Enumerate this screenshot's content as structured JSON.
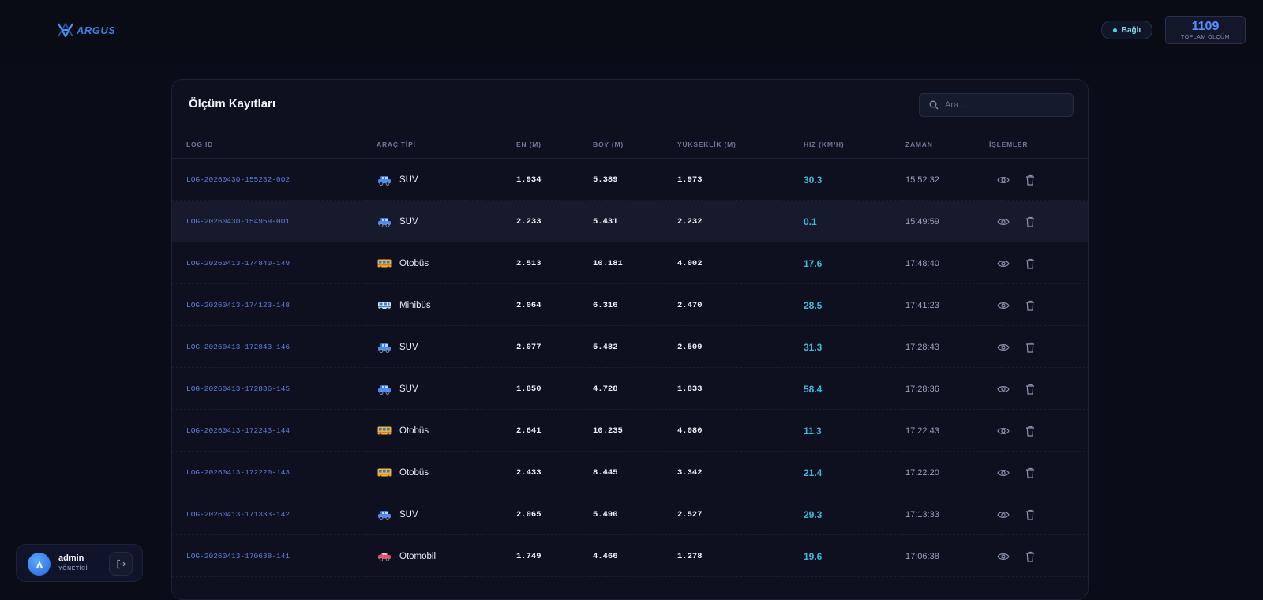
{
  "brand": {
    "name": "ARGUS",
    "accent": "#3f7fe0"
  },
  "header": {
    "status_label": "Bağlı",
    "status_color": "#4fd1e8",
    "total_count": "1109",
    "total_label": "TOPLAM ÖLÇÜM"
  },
  "panel": {
    "title": "Ölçüm Kayıtları",
    "search_placeholder": "Ara..."
  },
  "table": {
    "columns": [
      "LOG ID",
      "ARAÇ TİPİ",
      "EN (M)",
      "BOY (M)",
      "YÜKSEKLİK (M)",
      "HIZ (KM/H)",
      "ZAMAN",
      "İŞLEMLER"
    ],
    "rows": [
      {
        "id": "LOG-20260430-155232-002",
        "type": "SUV",
        "icon": "suv-icon",
        "en": "1.934",
        "boy": "5.389",
        "yukseklik": "1.973",
        "hiz": "30.3",
        "zaman": "15:52:32"
      },
      {
        "id": "LOG-20260430-154959-001",
        "type": "SUV",
        "icon": "suv-icon",
        "en": "2.233",
        "boy": "5.431",
        "yukseklik": "2.232",
        "hiz": "0.1",
        "zaman": "15:49:59"
      },
      {
        "id": "LOG-20260413-174840-149",
        "type": "Otobüs",
        "icon": "bus-icon",
        "en": "2.513",
        "boy": "10.181",
        "yukseklik": "4.002",
        "hiz": "17.6",
        "zaman": "17:48:40"
      },
      {
        "id": "LOG-20260413-174123-148",
        "type": "Minibüs",
        "icon": "minibus-icon",
        "en": "2.064",
        "boy": "6.316",
        "yukseklik": "2.470",
        "hiz": "28.5",
        "zaman": "17:41:23"
      },
      {
        "id": "LOG-20260413-172843-146",
        "type": "SUV",
        "icon": "suv-icon",
        "en": "2.077",
        "boy": "5.482",
        "yukseklik": "2.509",
        "hiz": "31.3",
        "zaman": "17:28:43"
      },
      {
        "id": "LOG-20260413-172836-145",
        "type": "SUV",
        "icon": "suv-icon",
        "en": "1.850",
        "boy": "4.728",
        "yukseklik": "1.833",
        "hiz": "58.4",
        "zaman": "17:28:36"
      },
      {
        "id": "LOG-20260413-172243-144",
        "type": "Otobüs",
        "icon": "bus-icon",
        "en": "2.641",
        "boy": "10.235",
        "yukseklik": "4.080",
        "hiz": "11.3",
        "zaman": "17:22:43"
      },
      {
        "id": "LOG-20260413-172220-143",
        "type": "Otobüs",
        "icon": "bus-icon",
        "en": "2.433",
        "boy": "8.445",
        "yukseklik": "3.342",
        "hiz": "21.4",
        "zaman": "17:22:20"
      },
      {
        "id": "LOG-20260413-171333-142",
        "type": "SUV",
        "icon": "suv-icon",
        "en": "2.065",
        "boy": "5.490",
        "yukseklik": "2.527",
        "hiz": "29.3",
        "zaman": "17:13:33"
      },
      {
        "id": "LOG-20260413-170638-141",
        "type": "Otomobil",
        "icon": "car-icon",
        "en": "1.749",
        "boy": "4.466",
        "yukseklik": "1.278",
        "hiz": "19.6",
        "zaman": "17:06:38"
      }
    ]
  },
  "user": {
    "name": "admin",
    "role": "YÖNETİCİ",
    "initial": "A"
  }
}
